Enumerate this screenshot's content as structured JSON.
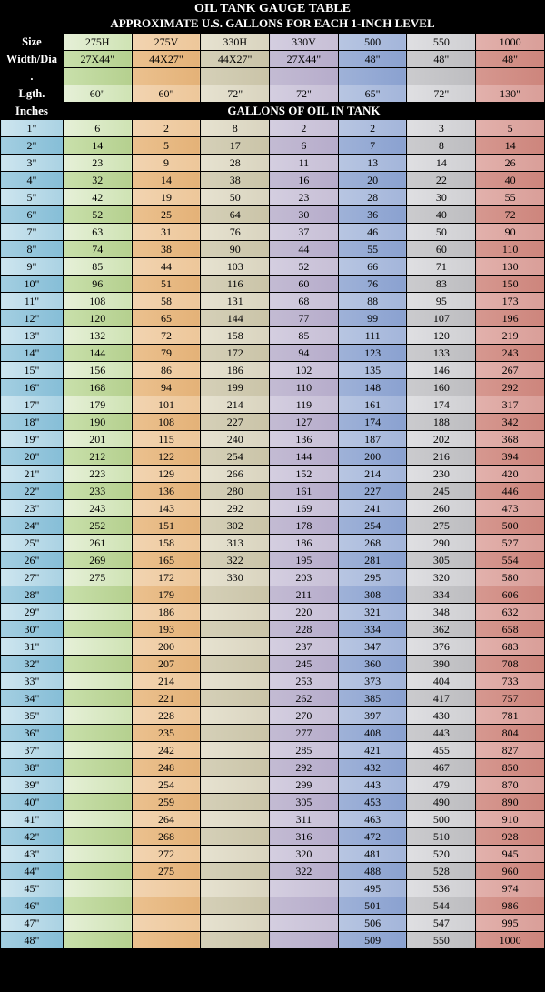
{
  "title": "OIL TANK GAUGE TABLE",
  "subtitle": "APPROXIMATE U.S. GALLONS FOR EACH 1-INCH LEVEL",
  "banner": "GALLONS OF OIL IN TANK",
  "row_labels": [
    "Size",
    "Width/Dia",
    ".",
    "Lgth.",
    "Inches"
  ],
  "columns": [
    {
      "size": "275H",
      "wd": "27X44\"",
      "lg": "60\""
    },
    {
      "size": "275V",
      "wd": "44X27\"",
      "lg": "60\""
    },
    {
      "size": "330H",
      "wd": "44X27\"",
      "lg": "72\""
    },
    {
      "size": "330V",
      "wd": "27X44\"",
      "lg": "72\""
    },
    {
      "size": "500",
      "wd": "48\"",
      "lg": "65\""
    },
    {
      "size": "550",
      "wd": "48\"",
      "lg": "72\""
    },
    {
      "size": "1000",
      "wd": "48\"",
      "lg": "130\""
    }
  ],
  "inches": [
    "1\"",
    "2\"",
    "3\"",
    "4\"",
    "5\"",
    "6\"",
    "7\"",
    "8\"",
    "9\"",
    "10\"",
    "11\"",
    "12\"",
    "13\"",
    "14\"",
    "15\"",
    "16\"",
    "17\"",
    "18\"",
    "19\"",
    "20\"",
    "21\"",
    "22\"",
    "23\"",
    "24\"",
    "25\"",
    "26\"",
    "27\"",
    "28\"",
    "29\"",
    "30\"",
    "31\"",
    "32\"",
    "33\"",
    "34\"",
    "35\"",
    "36\"",
    "37\"",
    "38\"",
    "39\"",
    "40\"",
    "41\"",
    "42\"",
    "43\"",
    "44\"",
    "45\"",
    "46\"",
    "47\"",
    "48\""
  ],
  "data": [
    [
      "6",
      "2",
      "8",
      "2",
      "2",
      "3",
      "5"
    ],
    [
      "14",
      "5",
      "17",
      "6",
      "7",
      "8",
      "14"
    ],
    [
      "23",
      "9",
      "28",
      "11",
      "13",
      "14",
      "26"
    ],
    [
      "32",
      "14",
      "38",
      "16",
      "20",
      "22",
      "40"
    ],
    [
      "42",
      "19",
      "50",
      "23",
      "28",
      "30",
      "55"
    ],
    [
      "52",
      "25",
      "64",
      "30",
      "36",
      "40",
      "72"
    ],
    [
      "63",
      "31",
      "76",
      "37",
      "46",
      "50",
      "90"
    ],
    [
      "74",
      "38",
      "90",
      "44",
      "55",
      "60",
      "110"
    ],
    [
      "85",
      "44",
      "103",
      "52",
      "66",
      "71",
      "130"
    ],
    [
      "96",
      "51",
      "116",
      "60",
      "76",
      "83",
      "150"
    ],
    [
      "108",
      "58",
      "131",
      "68",
      "88",
      "95",
      "173"
    ],
    [
      "120",
      "65",
      "144",
      "77",
      "99",
      "107",
      "196"
    ],
    [
      "132",
      "72",
      "158",
      "85",
      "111",
      "120",
      "219"
    ],
    [
      "144",
      "79",
      "172",
      "94",
      "123",
      "133",
      "243"
    ],
    [
      "156",
      "86",
      "186",
      "102",
      "135",
      "146",
      "267"
    ],
    [
      "168",
      "94",
      "199",
      "110",
      "148",
      "160",
      "292"
    ],
    [
      "179",
      "101",
      "214",
      "119",
      "161",
      "174",
      "317"
    ],
    [
      "190",
      "108",
      "227",
      "127",
      "174",
      "188",
      "342"
    ],
    [
      "201",
      "115",
      "240",
      "136",
      "187",
      "202",
      "368"
    ],
    [
      "212",
      "122",
      "254",
      "144",
      "200",
      "216",
      "394"
    ],
    [
      "223",
      "129",
      "266",
      "152",
      "214",
      "230",
      "420"
    ],
    [
      "233",
      "136",
      "280",
      "161",
      "227",
      "245",
      "446"
    ],
    [
      "243",
      "143",
      "292",
      "169",
      "241",
      "260",
      "473"
    ],
    [
      "252",
      "151",
      "302",
      "178",
      "254",
      "275",
      "500"
    ],
    [
      "261",
      "158",
      "313",
      "186",
      "268",
      "290",
      "527"
    ],
    [
      "269",
      "165",
      "322",
      "195",
      "281",
      "305",
      "554"
    ],
    [
      "275",
      "172",
      "330",
      "203",
      "295",
      "320",
      "580"
    ],
    [
      "",
      "179",
      "",
      "211",
      "308",
      "334",
      "606"
    ],
    [
      "",
      "186",
      "",
      "220",
      "321",
      "348",
      "632"
    ],
    [
      "",
      "193",
      "",
      "228",
      "334",
      "362",
      "658"
    ],
    [
      "",
      "200",
      "",
      "237",
      "347",
      "376",
      "683"
    ],
    [
      "",
      "207",
      "",
      "245",
      "360",
      "390",
      "708"
    ],
    [
      "",
      "214",
      "",
      "253",
      "373",
      "404",
      "733"
    ],
    [
      "",
      "221",
      "",
      "262",
      "385",
      "417",
      "757"
    ],
    [
      "",
      "228",
      "",
      "270",
      "397",
      "430",
      "781"
    ],
    [
      "",
      "235",
      "",
      "277",
      "408",
      "443",
      "804"
    ],
    [
      "",
      "242",
      "",
      "285",
      "421",
      "455",
      "827"
    ],
    [
      "",
      "248",
      "",
      "292",
      "432",
      "467",
      "850"
    ],
    [
      "",
      "254",
      "",
      "299",
      "443",
      "479",
      "870"
    ],
    [
      "",
      "259",
      "",
      "305",
      "453",
      "490",
      "890"
    ],
    [
      "",
      "264",
      "",
      "311",
      "463",
      "500",
      "910"
    ],
    [
      "",
      "268",
      "",
      "316",
      "472",
      "510",
      "928"
    ],
    [
      "",
      "272",
      "",
      "320",
      "481",
      "520",
      "945"
    ],
    [
      "",
      "275",
      "",
      "322",
      "488",
      "528",
      "960"
    ],
    [
      "",
      "",
      "",
      "",
      "495",
      "536",
      "974"
    ],
    [
      "",
      "",
      "",
      "",
      "501",
      "544",
      "986"
    ],
    [
      "",
      "",
      "",
      "",
      "506",
      "547",
      "995"
    ],
    [
      "",
      "",
      "",
      "",
      "509",
      "550",
      "1000"
    ]
  ],
  "styling": {
    "type": "table",
    "background_color": "#000000",
    "text_color": "#000000",
    "header_text_color": "#ffffff",
    "font_family": "Times New Roman",
    "cell_fontsize": 12,
    "title_fontsize": 14,
    "border_color": "#000000",
    "column_gradients": {
      "index_light": [
        "#cde5ef",
        "#aad2e3"
      ],
      "index_dark": [
        "#a3cee1",
        "#86bed7"
      ],
      "col1_light": [
        "#e6f0d8",
        "#cfe3b4"
      ],
      "col1_dark": [
        "#c9e0ab",
        "#b5d08f"
      ],
      "col2_light": [
        "#f2d4b1",
        "#edc79a"
      ],
      "col2_dark": [
        "#ebc18f",
        "#e4b278"
      ],
      "col3_light": [
        "#e6e2d0",
        "#d9d4bf"
      ],
      "col3_dark": [
        "#d5d0b8",
        "#cac4a8"
      ],
      "col4_light": [
        "#d4cee0",
        "#c7bfd6"
      ],
      "col4_dark": [
        "#c3bbd3",
        "#b6accb"
      ],
      "col5_light": [
        "#b8c6e2",
        "#a3b5da"
      ],
      "col5_dark": [
        "#9fb2d8",
        "#8aa1d0"
      ],
      "col6_light": [
        "#dfdfe2",
        "#cfcfd2"
      ],
      "col6_dark": [
        "#cbcbce",
        "#bdbdc0"
      ],
      "col7_light": [
        "#e2b1ac",
        "#d99e98"
      ],
      "col7_dark": [
        "#d69890",
        "#cd857c"
      ]
    }
  }
}
